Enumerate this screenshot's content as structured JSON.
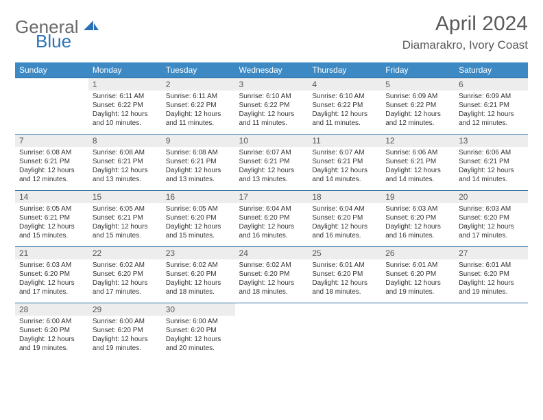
{
  "brand": {
    "general": "General",
    "blue": "Blue"
  },
  "title": "April 2024",
  "location": "Diamarakro, Ivory Coast",
  "colors": {
    "header_bg": "#3c89c3",
    "header_text": "#ffffff",
    "daynum_bg": "#ededed",
    "rule": "#2f6fa3",
    "brand_gray": "#6a6a6a",
    "brand_blue": "#2a72b5",
    "text": "#333333"
  },
  "weekdays": [
    "Sunday",
    "Monday",
    "Tuesday",
    "Wednesday",
    "Thursday",
    "Friday",
    "Saturday"
  ],
  "weeks": [
    [
      null,
      {
        "n": "1",
        "sr": "Sunrise: 6:11 AM",
        "ss": "Sunset: 6:22 PM",
        "d1": "Daylight: 12 hours",
        "d2": "and 10 minutes."
      },
      {
        "n": "2",
        "sr": "Sunrise: 6:11 AM",
        "ss": "Sunset: 6:22 PM",
        "d1": "Daylight: 12 hours",
        "d2": "and 11 minutes."
      },
      {
        "n": "3",
        "sr": "Sunrise: 6:10 AM",
        "ss": "Sunset: 6:22 PM",
        "d1": "Daylight: 12 hours",
        "d2": "and 11 minutes."
      },
      {
        "n": "4",
        "sr": "Sunrise: 6:10 AM",
        "ss": "Sunset: 6:22 PM",
        "d1": "Daylight: 12 hours",
        "d2": "and 11 minutes."
      },
      {
        "n": "5",
        "sr": "Sunrise: 6:09 AM",
        "ss": "Sunset: 6:22 PM",
        "d1": "Daylight: 12 hours",
        "d2": "and 12 minutes."
      },
      {
        "n": "6",
        "sr": "Sunrise: 6:09 AM",
        "ss": "Sunset: 6:21 PM",
        "d1": "Daylight: 12 hours",
        "d2": "and 12 minutes."
      }
    ],
    [
      {
        "n": "7",
        "sr": "Sunrise: 6:08 AM",
        "ss": "Sunset: 6:21 PM",
        "d1": "Daylight: 12 hours",
        "d2": "and 12 minutes."
      },
      {
        "n": "8",
        "sr": "Sunrise: 6:08 AM",
        "ss": "Sunset: 6:21 PM",
        "d1": "Daylight: 12 hours",
        "d2": "and 13 minutes."
      },
      {
        "n": "9",
        "sr": "Sunrise: 6:08 AM",
        "ss": "Sunset: 6:21 PM",
        "d1": "Daylight: 12 hours",
        "d2": "and 13 minutes."
      },
      {
        "n": "10",
        "sr": "Sunrise: 6:07 AM",
        "ss": "Sunset: 6:21 PM",
        "d1": "Daylight: 12 hours",
        "d2": "and 13 minutes."
      },
      {
        "n": "11",
        "sr": "Sunrise: 6:07 AM",
        "ss": "Sunset: 6:21 PM",
        "d1": "Daylight: 12 hours",
        "d2": "and 14 minutes."
      },
      {
        "n": "12",
        "sr": "Sunrise: 6:06 AM",
        "ss": "Sunset: 6:21 PM",
        "d1": "Daylight: 12 hours",
        "d2": "and 14 minutes."
      },
      {
        "n": "13",
        "sr": "Sunrise: 6:06 AM",
        "ss": "Sunset: 6:21 PM",
        "d1": "Daylight: 12 hours",
        "d2": "and 14 minutes."
      }
    ],
    [
      {
        "n": "14",
        "sr": "Sunrise: 6:05 AM",
        "ss": "Sunset: 6:21 PM",
        "d1": "Daylight: 12 hours",
        "d2": "and 15 minutes."
      },
      {
        "n": "15",
        "sr": "Sunrise: 6:05 AM",
        "ss": "Sunset: 6:21 PM",
        "d1": "Daylight: 12 hours",
        "d2": "and 15 minutes."
      },
      {
        "n": "16",
        "sr": "Sunrise: 6:05 AM",
        "ss": "Sunset: 6:20 PM",
        "d1": "Daylight: 12 hours",
        "d2": "and 15 minutes."
      },
      {
        "n": "17",
        "sr": "Sunrise: 6:04 AM",
        "ss": "Sunset: 6:20 PM",
        "d1": "Daylight: 12 hours",
        "d2": "and 16 minutes."
      },
      {
        "n": "18",
        "sr": "Sunrise: 6:04 AM",
        "ss": "Sunset: 6:20 PM",
        "d1": "Daylight: 12 hours",
        "d2": "and 16 minutes."
      },
      {
        "n": "19",
        "sr": "Sunrise: 6:03 AM",
        "ss": "Sunset: 6:20 PM",
        "d1": "Daylight: 12 hours",
        "d2": "and 16 minutes."
      },
      {
        "n": "20",
        "sr": "Sunrise: 6:03 AM",
        "ss": "Sunset: 6:20 PM",
        "d1": "Daylight: 12 hours",
        "d2": "and 17 minutes."
      }
    ],
    [
      {
        "n": "21",
        "sr": "Sunrise: 6:03 AM",
        "ss": "Sunset: 6:20 PM",
        "d1": "Daylight: 12 hours",
        "d2": "and 17 minutes."
      },
      {
        "n": "22",
        "sr": "Sunrise: 6:02 AM",
        "ss": "Sunset: 6:20 PM",
        "d1": "Daylight: 12 hours",
        "d2": "and 17 minutes."
      },
      {
        "n": "23",
        "sr": "Sunrise: 6:02 AM",
        "ss": "Sunset: 6:20 PM",
        "d1": "Daylight: 12 hours",
        "d2": "and 18 minutes."
      },
      {
        "n": "24",
        "sr": "Sunrise: 6:02 AM",
        "ss": "Sunset: 6:20 PM",
        "d1": "Daylight: 12 hours",
        "d2": "and 18 minutes."
      },
      {
        "n": "25",
        "sr": "Sunrise: 6:01 AM",
        "ss": "Sunset: 6:20 PM",
        "d1": "Daylight: 12 hours",
        "d2": "and 18 minutes."
      },
      {
        "n": "26",
        "sr": "Sunrise: 6:01 AM",
        "ss": "Sunset: 6:20 PM",
        "d1": "Daylight: 12 hours",
        "d2": "and 19 minutes."
      },
      {
        "n": "27",
        "sr": "Sunrise: 6:01 AM",
        "ss": "Sunset: 6:20 PM",
        "d1": "Daylight: 12 hours",
        "d2": "and 19 minutes."
      }
    ],
    [
      {
        "n": "28",
        "sr": "Sunrise: 6:00 AM",
        "ss": "Sunset: 6:20 PM",
        "d1": "Daylight: 12 hours",
        "d2": "and 19 minutes."
      },
      {
        "n": "29",
        "sr": "Sunrise: 6:00 AM",
        "ss": "Sunset: 6:20 PM",
        "d1": "Daylight: 12 hours",
        "d2": "and 19 minutes."
      },
      {
        "n": "30",
        "sr": "Sunrise: 6:00 AM",
        "ss": "Sunset: 6:20 PM",
        "d1": "Daylight: 12 hours",
        "d2": "and 20 minutes."
      },
      null,
      null,
      null,
      null
    ]
  ]
}
